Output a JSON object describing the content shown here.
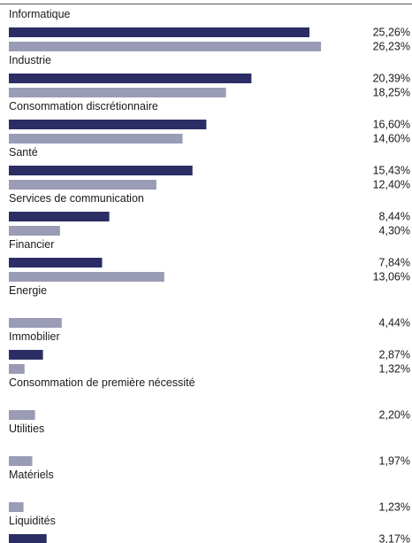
{
  "chart_data": {
    "type": "bar",
    "orientation": "horizontal",
    "value_suffix": "%",
    "colors": {
      "series_1": "#2b2d64",
      "series_2": "#9a9cb5",
      "rule": "#555555"
    },
    "categories": [
      "Informatique",
      "Industrie",
      "Consommation discrétionnaire",
      "Santé",
      "Services de communication",
      "Financier",
      "Energie",
      "Immobilier",
      "Consommation de première nécessité",
      "Utilities",
      "Matériels",
      "Liquidités"
    ],
    "series": [
      {
        "values": [
          25.26,
          20.39,
          16.6,
          15.43,
          8.44,
          7.84,
          null,
          2.87,
          null,
          null,
          null,
          3.17
        ],
        "labels": [
          "25,26%",
          "20,39%",
          "16,60%",
          "15,43%",
          "8,44%",
          "7,84%",
          null,
          "2,87%",
          null,
          null,
          null,
          "3,17%"
        ]
      },
      {
        "values": [
          26.23,
          18.25,
          14.6,
          12.4,
          4.3,
          13.06,
          4.44,
          1.32,
          2.2,
          1.97,
          1.23,
          null
        ],
        "labels": [
          "26,23%",
          "18,25%",
          "14,60%",
          "12,40%",
          "4,30%",
          "13,06%",
          "4,44%",
          "1,32%",
          "2,20%",
          "1,97%",
          "1,23%",
          null
        ]
      }
    ]
  }
}
